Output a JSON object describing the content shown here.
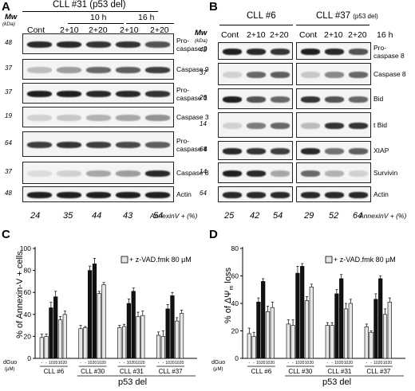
{
  "panelA": {
    "letter": "A",
    "title": "CLL #31 (p53 del)",
    "mw_header": "Mw",
    "mw_unit": "(kDa)",
    "time_10": "10 h",
    "time_16": "16 h",
    "lanes": [
      "Cont",
      "2+10",
      "2+20",
      "2+10",
      "2+20"
    ],
    "rows": [
      {
        "mw": "48",
        "label": "Pro-\ncaspase 9",
        "intensity": [
          0.9,
          0.9,
          0.85,
          0.85,
          0.7
        ]
      },
      {
        "mw": "37",
        "label": "Caspase 9",
        "intensity": [
          0.2,
          0.35,
          0.6,
          0.65,
          0.8
        ]
      },
      {
        "mw": "37",
        "label": "Pro-\ncaspase 3",
        "intensity": [
          0.95,
          0.95,
          0.9,
          0.9,
          0.85
        ]
      },
      {
        "mw": "19",
        "label": "Caspase 3",
        "intensity": [
          0.1,
          0.15,
          0.25,
          0.3,
          0.4
        ]
      },
      {
        "mw": "64",
        "label": "Pro-\ncaspase 8",
        "intensity": [
          0.8,
          0.85,
          0.8,
          0.75,
          0.65
        ]
      },
      {
        "mw": "37",
        "label": "Caspase 8",
        "intensity": [
          0.05,
          0.1,
          0.3,
          0.35,
          0.9
        ]
      },
      {
        "mw": "48",
        "label": "Actin",
        "intensity": [
          0.95,
          0.95,
          0.95,
          0.95,
          0.95
        ]
      }
    ],
    "annexin": [
      "24",
      "35",
      "44",
      "43",
      "54"
    ],
    "annexin_label": "AnnexinV + (%)"
  },
  "panelB": {
    "letter": "B",
    "title6": "CLL #6",
    "title37": "CLL #37",
    "title37_note": "(p53 del)",
    "mw_header": "Mw",
    "mw_unit": "(kDa)",
    "time": "16 h",
    "lanes": [
      "Cont",
      "2+10",
      "2+20"
    ],
    "rows": [
      {
        "mw": "48",
        "label": "Pro-\ncaspase 8",
        "i6": [
          0.95,
          0.9,
          0.85
        ],
        "i37": [
          0.95,
          0.9,
          0.7
        ]
      },
      {
        "mw": "37",
        "label": "Caspase 8",
        "i6": [
          0.1,
          0.6,
          0.65
        ],
        "i37": [
          0.15,
          0.45,
          0.6
        ]
      },
      {
        "mw": "26",
        "label": "Bid",
        "i6": [
          0.95,
          0.7,
          0.6
        ],
        "i37": [
          0.85,
          0.7,
          0.6
        ]
      },
      {
        "mw": "14",
        "label": "t Bid",
        "i6": [
          0.1,
          0.5,
          0.6
        ],
        "i37": [
          0.2,
          0.85,
          0.85
        ]
      },
      {
        "mw": "64",
        "label": "XIAP",
        "i6": [
          0.9,
          0.85,
          0.8
        ],
        "i37": [
          0.9,
          0.55,
          0.65
        ]
      },
      {
        "mw": "14",
        "label": "Survivin",
        "i6": [
          0.95,
          0.9,
          0.3
        ],
        "i37": [
          0.6,
          0.25,
          0.1
        ]
      },
      {
        "mw": "64",
        "label": "Actin",
        "i6": [
          0.9,
          0.9,
          0.9
        ],
        "i37": [
          0.9,
          0.9,
          0.9
        ]
      }
    ],
    "annexin6": [
      "25",
      "42",
      "54"
    ],
    "annexin37": [
      "29",
      "52",
      "64"
    ],
    "annexin_label": "AnnexinV + (%)"
  },
  "panelC": {
    "letter": "C",
    "ylabel": "% of Annexin-V + cells",
    "legend": "+ z-VAD.fmk 80 μM",
    "dguo": "dGuo",
    "um": "(μM)",
    "p53": "p53 del",
    "chart_data": {
      "type": "bar",
      "ylim": [
        0,
        100
      ],
      "yticks": [
        0,
        20,
        40,
        60,
        80,
        100
      ],
      "dose_ticks": [
        "-",
        "-",
        "10",
        "20",
        "10",
        "20"
      ],
      "groups": [
        {
          "name": "CLL #6",
          "values": [
            19,
            20,
            46,
            56,
            35,
            40
          ],
          "errors": [
            3,
            2,
            5,
            5,
            3,
            3
          ]
        },
        {
          "name": "CLL #30",
          "values": [
            27,
            28,
            80,
            86,
            59,
            67
          ],
          "errors": [
            3,
            1,
            4,
            5,
            2,
            2
          ]
        },
        {
          "name": "CLL #31",
          "values": [
            28,
            29,
            50,
            61,
            38,
            39
          ],
          "errors": [
            2,
            2,
            4,
            3,
            4,
            4
          ]
        },
        {
          "name": "CLL #37",
          "values": [
            21,
            20,
            45,
            57,
            34,
            41
          ],
          "errors": [
            3,
            5,
            4,
            3,
            3,
            3
          ]
        }
      ]
    }
  },
  "panelD": {
    "letter": "D",
    "ylabel_pre": "% of ",
    "ylabel_sym": "ΔΨ",
    "ylabel_sub": "m",
    "ylabel_post": " loss",
    "legend": "+ z-VAD.fmk 80 μM",
    "dguo": "dGuo",
    "um": "(μM)",
    "p53": "p53 del",
    "chart_data": {
      "type": "bar",
      "ylim": [
        0,
        80
      ],
      "yticks": [
        0,
        20,
        40,
        60,
        80
      ],
      "dose_ticks": [
        "-",
        "-",
        "10",
        "20",
        "10",
        "20"
      ],
      "groups": [
        {
          "name": "CLL #6",
          "values": [
            18,
            16,
            41,
            56,
            34,
            37
          ],
          "errors": [
            4,
            3,
            3,
            2,
            4,
            4
          ]
        },
        {
          "name": "CLL #30",
          "values": [
            25,
            24,
            62,
            67,
            42,
            52
          ],
          "errors": [
            3,
            4,
            5,
            2,
            3,
            2
          ]
        },
        {
          "name": "CLL #31",
          "values": [
            24,
            24,
            47,
            58,
            36,
            40
          ],
          "errors": [
            2,
            2,
            3,
            3,
            4,
            3
          ]
        },
        {
          "name": "CLL #37",
          "values": [
            23,
            19,
            43,
            58,
            32,
            41
          ],
          "errors": [
            2,
            1,
            4,
            2,
            4,
            3
          ]
        }
      ]
    }
  }
}
